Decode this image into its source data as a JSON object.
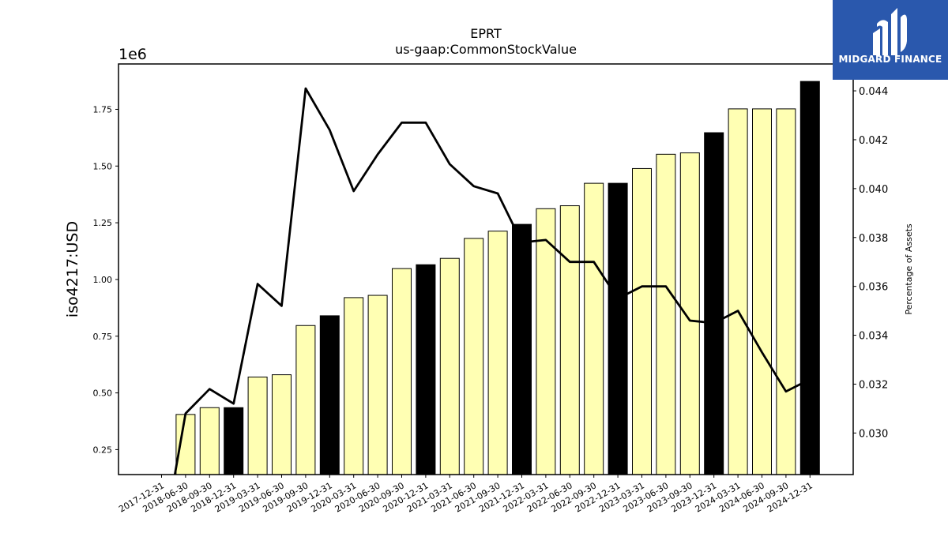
{
  "chart_data": {
    "type": "bar",
    "title": "EPRT",
    "subtitle": "us-gaap:CommonStockValue",
    "ylabel": "iso4217:USD",
    "y_offset_label": "1e6",
    "y2label": "Percentage of Assets",
    "categories": [
      "2017-12-31",
      "2018-06-30",
      "2018-09-30",
      "2018-12-31",
      "2019-03-31",
      "2019-06-30",
      "2019-09-30",
      "2019-12-31",
      "2020-03-31",
      "2020-06-30",
      "2020-09-30",
      "2020-12-31",
      "2021-03-31",
      "2021-06-30",
      "2021-09-30",
      "2021-12-31",
      "2022-03-31",
      "2022-06-30",
      "2022-09-30",
      "2022-12-31",
      "2023-03-31",
      "2023-06-30",
      "2023-09-30",
      "2023-12-31",
      "2024-03-31",
      "2024-06-30",
      "2024-09-30",
      "2024-12-31"
    ],
    "series": [
      {
        "kind": "bar",
        "axis": "left",
        "values": [
          null,
          405000,
          435000,
          435000,
          570000,
          580000,
          797000,
          840000,
          920000,
          930000,
          1048000,
          1065000,
          1093000,
          1181000,
          1213000,
          1243000,
          1312000,
          1325000,
          1424000,
          1424000,
          1489000,
          1552000,
          1558000,
          1647000,
          1752000,
          1752000,
          1752000,
          1873000
        ],
        "highlight": [
          false,
          false,
          false,
          true,
          false,
          false,
          false,
          true,
          false,
          false,
          false,
          true,
          false,
          false,
          false,
          true,
          false,
          false,
          false,
          true,
          false,
          false,
          false,
          true,
          false,
          false,
          false,
          true
        ]
      },
      {
        "kind": "line",
        "axis": "right",
        "values": [
          0.0252,
          0.0308,
          0.0318,
          0.0312,
          0.0361,
          0.0352,
          0.0441,
          0.0424,
          0.0399,
          0.0414,
          0.0427,
          0.0427,
          0.041,
          0.0401,
          0.0398,
          0.0378,
          0.0379,
          0.037,
          0.037,
          0.0355,
          0.036,
          0.036,
          0.0346,
          0.0345,
          0.035,
          0.0333,
          0.0317,
          0.0322
        ]
      }
    ],
    "ylim": [
      140000,
      1950000
    ],
    "y2lim": [
      0.0283,
      0.0451
    ],
    "yticks": [
      250000,
      500000,
      750000,
      1000000,
      1250000,
      1500000,
      1750000
    ],
    "ytick_labels": [
      "0.25",
      "0.50",
      "0.75",
      "1.00",
      "1.25",
      "1.50",
      "1.75"
    ],
    "y2ticks": [
      0.03,
      0.032,
      0.034,
      0.036,
      0.038,
      0.04,
      0.042,
      0.044
    ],
    "y2tick_labels": [
      "0.030",
      "0.032",
      "0.034",
      "0.036",
      "0.038",
      "0.040",
      "0.042",
      "0.044"
    ],
    "grid": false,
    "colors": {
      "bar": "#ffffb3",
      "bar_highlight": "#000000",
      "bar_edge": "#000000",
      "line": "#000000"
    }
  },
  "logo": {
    "text": "MIDGARD FINANCE",
    "background": "#2a58ad"
  }
}
